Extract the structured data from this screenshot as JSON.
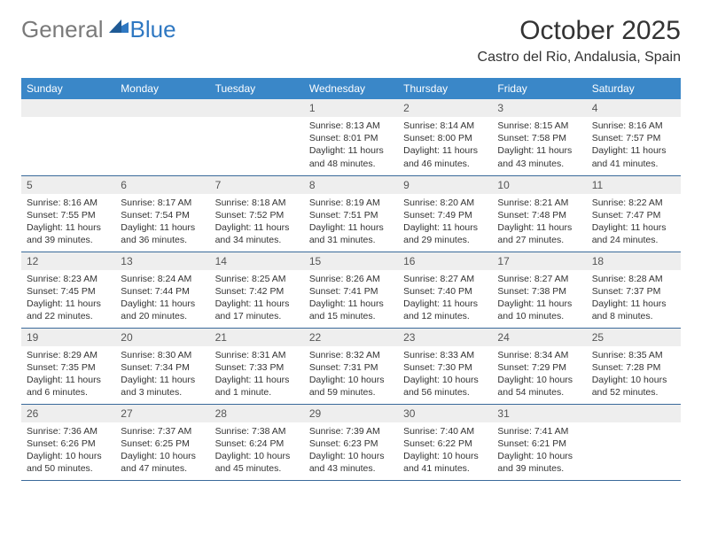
{
  "logo": {
    "text1": "General",
    "text2": "Blue",
    "text1_color": "#7a7a7a",
    "text2_color": "#2f78c2",
    "mark_color": "#2f78c2"
  },
  "header": {
    "title": "October 2025",
    "location": "Castro del Rio, Andalusia, Spain"
  },
  "styling": {
    "header_bg": "#3a87c8",
    "header_fg": "#ffffff",
    "daynum_bg": "#eeeeee",
    "row_divider": "#3a6a9a",
    "body_font_size": 10.5,
    "title_font_size": 30
  },
  "weekdays": [
    "Sunday",
    "Monday",
    "Tuesday",
    "Wednesday",
    "Thursday",
    "Friday",
    "Saturday"
  ],
  "calendar": {
    "month": 10,
    "year": 2025,
    "first_weekday_index": 3,
    "days": [
      {
        "n": 1,
        "sunrise": "8:13 AM",
        "sunset": "8:01 PM",
        "dl_h": 11,
        "dl_m": 48
      },
      {
        "n": 2,
        "sunrise": "8:14 AM",
        "sunset": "8:00 PM",
        "dl_h": 11,
        "dl_m": 46
      },
      {
        "n": 3,
        "sunrise": "8:15 AM",
        "sunset": "7:58 PM",
        "dl_h": 11,
        "dl_m": 43
      },
      {
        "n": 4,
        "sunrise": "8:16 AM",
        "sunset": "7:57 PM",
        "dl_h": 11,
        "dl_m": 41
      },
      {
        "n": 5,
        "sunrise": "8:16 AM",
        "sunset": "7:55 PM",
        "dl_h": 11,
        "dl_m": 39
      },
      {
        "n": 6,
        "sunrise": "8:17 AM",
        "sunset": "7:54 PM",
        "dl_h": 11,
        "dl_m": 36
      },
      {
        "n": 7,
        "sunrise": "8:18 AM",
        "sunset": "7:52 PM",
        "dl_h": 11,
        "dl_m": 34
      },
      {
        "n": 8,
        "sunrise": "8:19 AM",
        "sunset": "7:51 PM",
        "dl_h": 11,
        "dl_m": 31
      },
      {
        "n": 9,
        "sunrise": "8:20 AM",
        "sunset": "7:49 PM",
        "dl_h": 11,
        "dl_m": 29
      },
      {
        "n": 10,
        "sunrise": "8:21 AM",
        "sunset": "7:48 PM",
        "dl_h": 11,
        "dl_m": 27
      },
      {
        "n": 11,
        "sunrise": "8:22 AM",
        "sunset": "7:47 PM",
        "dl_h": 11,
        "dl_m": 24
      },
      {
        "n": 12,
        "sunrise": "8:23 AM",
        "sunset": "7:45 PM",
        "dl_h": 11,
        "dl_m": 22
      },
      {
        "n": 13,
        "sunrise": "8:24 AM",
        "sunset": "7:44 PM",
        "dl_h": 11,
        "dl_m": 20
      },
      {
        "n": 14,
        "sunrise": "8:25 AM",
        "sunset": "7:42 PM",
        "dl_h": 11,
        "dl_m": 17
      },
      {
        "n": 15,
        "sunrise": "8:26 AM",
        "sunset": "7:41 PM",
        "dl_h": 11,
        "dl_m": 15
      },
      {
        "n": 16,
        "sunrise": "8:27 AM",
        "sunset": "7:40 PM",
        "dl_h": 11,
        "dl_m": 12
      },
      {
        "n": 17,
        "sunrise": "8:27 AM",
        "sunset": "7:38 PM",
        "dl_h": 11,
        "dl_m": 10
      },
      {
        "n": 18,
        "sunrise": "8:28 AM",
        "sunset": "7:37 PM",
        "dl_h": 11,
        "dl_m": 8
      },
      {
        "n": 19,
        "sunrise": "8:29 AM",
        "sunset": "7:35 PM",
        "dl_h": 11,
        "dl_m": 6
      },
      {
        "n": 20,
        "sunrise": "8:30 AM",
        "sunset": "7:34 PM",
        "dl_h": 11,
        "dl_m": 3
      },
      {
        "n": 21,
        "sunrise": "8:31 AM",
        "sunset": "7:33 PM",
        "dl_h": 11,
        "dl_m": 1
      },
      {
        "n": 22,
        "sunrise": "8:32 AM",
        "sunset": "7:31 PM",
        "dl_h": 10,
        "dl_m": 59
      },
      {
        "n": 23,
        "sunrise": "8:33 AM",
        "sunset": "7:30 PM",
        "dl_h": 10,
        "dl_m": 56
      },
      {
        "n": 24,
        "sunrise": "8:34 AM",
        "sunset": "7:29 PM",
        "dl_h": 10,
        "dl_m": 54
      },
      {
        "n": 25,
        "sunrise": "8:35 AM",
        "sunset": "7:28 PM",
        "dl_h": 10,
        "dl_m": 52
      },
      {
        "n": 26,
        "sunrise": "7:36 AM",
        "sunset": "6:26 PM",
        "dl_h": 10,
        "dl_m": 50
      },
      {
        "n": 27,
        "sunrise": "7:37 AM",
        "sunset": "6:25 PM",
        "dl_h": 10,
        "dl_m": 47
      },
      {
        "n": 28,
        "sunrise": "7:38 AM",
        "sunset": "6:24 PM",
        "dl_h": 10,
        "dl_m": 45
      },
      {
        "n": 29,
        "sunrise": "7:39 AM",
        "sunset": "6:23 PM",
        "dl_h": 10,
        "dl_m": 43
      },
      {
        "n": 30,
        "sunrise": "7:40 AM",
        "sunset": "6:22 PM",
        "dl_h": 10,
        "dl_m": 41
      },
      {
        "n": 31,
        "sunrise": "7:41 AM",
        "sunset": "6:21 PM",
        "dl_h": 10,
        "dl_m": 39
      }
    ]
  },
  "labels": {
    "sunrise": "Sunrise:",
    "sunset": "Sunset:",
    "daylight": "Daylight:",
    "hours": "hours",
    "and": "and",
    "minutes": "minutes.",
    "minute": "minute."
  }
}
